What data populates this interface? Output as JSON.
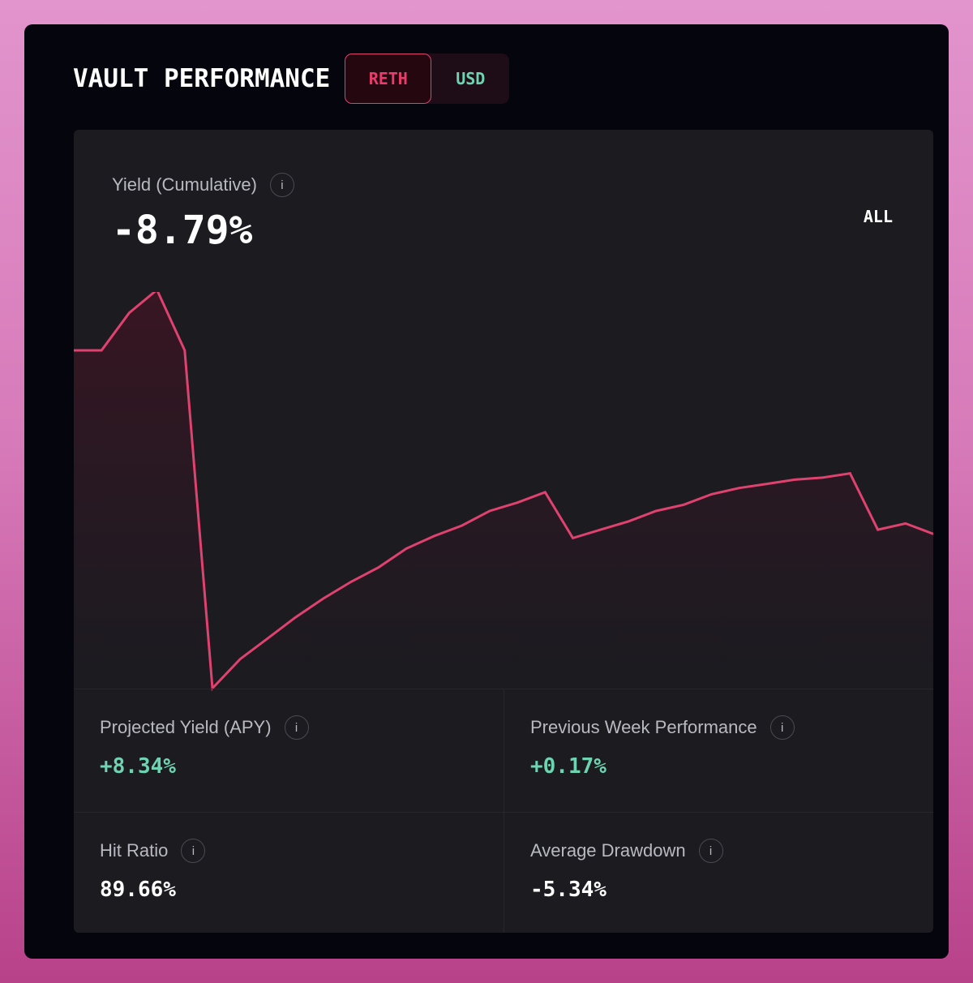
{
  "header": {
    "title": "VAULT PERFORMANCE",
    "toggle": {
      "active": "RETH",
      "inactive": "USD"
    }
  },
  "colors": {
    "accent_red": "#e04270",
    "accent_green": "#6ed3b0",
    "panel_bg": "#1b1b20"
  },
  "summary": {
    "yield_label": "Yield (Cumulative)",
    "yield_value": "-8.79%",
    "range": "ALL",
    "info_icon": "i"
  },
  "chart_data": {
    "type": "area",
    "title": "",
    "xlabel": "",
    "ylabel": "",
    "grid": false,
    "series": [
      {
        "values": [
          0.0,
          0.0,
          1.8,
          2.9,
          0.0,
          -16.2,
          -14.8,
          -13.8,
          -12.8,
          -11.9,
          -11.1,
          -10.4,
          -9.5,
          -8.9,
          -8.4,
          -7.7,
          -7.3,
          -6.8,
          -9.0,
          -8.6,
          -8.2,
          -7.7,
          -7.4,
          -6.9,
          -6.6,
          -6.4,
          -6.2,
          -6.1,
          -5.9,
          -8.6,
          -8.3,
          -8.8
        ]
      }
    ]
  },
  "stats": [
    {
      "label": "Projected Yield (APY)",
      "value": "+8.34%",
      "tone": "positive"
    },
    {
      "label": "Previous Week Performance",
      "value": "+0.17%",
      "tone": "positive"
    },
    {
      "label": "Hit Ratio",
      "value": "89.66%",
      "tone": "neutral"
    },
    {
      "label": "Average Drawdown",
      "value": "-5.34%",
      "tone": "neutral"
    }
  ]
}
